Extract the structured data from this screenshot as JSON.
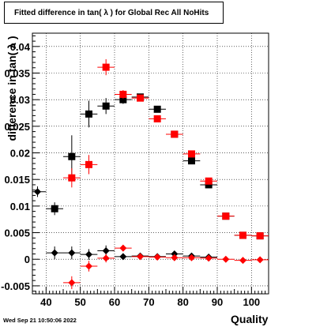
{
  "header": {
    "title": "Fitted difference in tan( λ ) for Global Rec All NoHits"
  },
  "footer": {
    "timestamp": "Wed Sep 21 10:50:06 2022"
  },
  "colors": {
    "series_black": "#000000",
    "series_red": "#ff0000",
    "grid": "#000000",
    "background": "#ffffff"
  },
  "chart_data": {
    "type": "scatter",
    "title": "Fitted difference in tan( λ ) for Global Rec All NoHits",
    "xlabel": "Quality",
    "ylabel": "difference in tan( λ )",
    "xlim": [
      36,
      105
    ],
    "ylim": [
      -0.0065,
      0.0425
    ],
    "xticks": [
      40,
      50,
      60,
      70,
      80,
      90,
      100
    ],
    "xtick_labels": [
      "40",
      "50",
      "60",
      "70",
      "80",
      "90",
      "100"
    ],
    "yticks": [
      -0.005,
      0,
      0.005,
      0.01,
      0.015,
      0.02,
      0.025,
      0.03,
      0.035,
      0.04
    ],
    "ytick_labels": [
      "-0.005",
      "0",
      "0.005",
      "0.01",
      "0.015",
      "0.02",
      "0.025",
      "0.03",
      "0.035",
      "0.04"
    ],
    "grid": true,
    "series": [
      {
        "marker": "square",
        "color": "#000000",
        "points": [
          {
            "x": 42.5,
            "y": 0.0095,
            "err": 0.0012
          },
          {
            "x": 47.5,
            "y": 0.0193,
            "err": 0.004
          },
          {
            "x": 52.5,
            "y": 0.0273,
            "err": 0.0025
          },
          {
            "x": 57.5,
            "y": 0.0288,
            "err": 0.0015
          },
          {
            "x": 62.5,
            "y": 0.03,
            "err": 0.0008
          },
          {
            "x": 67.5,
            "y": 0.0305,
            "err": 0.0006
          },
          {
            "x": 72.5,
            "y": 0.0282,
            "err": 0.0005
          },
          {
            "x": 77.5,
            "y": 0.0235,
            "err": 0.0004
          },
          {
            "x": 82.5,
            "y": 0.0185,
            "err": 0.0004
          },
          {
            "x": 87.5,
            "y": 0.014,
            "err": 0.0004
          },
          {
            "x": 92.5,
            "y": 0.0081,
            "err": 0.0004
          },
          {
            "x": 97.5,
            "y": 0.0045,
            "err": 0.0003
          },
          {
            "x": 102.5,
            "y": 0.0044,
            "err": 0.0003
          }
        ]
      },
      {
        "marker": "square",
        "color": "#ff0000",
        "points": [
          {
            "x": 47.5,
            "y": 0.0153,
            "err": 0.0018
          },
          {
            "x": 52.5,
            "y": 0.0178,
            "err": 0.0018
          },
          {
            "x": 57.5,
            "y": 0.0361,
            "err": 0.0015
          },
          {
            "x": 62.5,
            "y": 0.031,
            "err": 0.0008
          },
          {
            "x": 67.5,
            "y": 0.0303,
            "err": 0.0006
          },
          {
            "x": 72.5,
            "y": 0.0264,
            "err": 0.0005
          },
          {
            "x": 77.5,
            "y": 0.0235,
            "err": 0.0004
          },
          {
            "x": 82.5,
            "y": 0.0198,
            "err": 0.0004
          },
          {
            "x": 87.5,
            "y": 0.0147,
            "err": 0.0004
          },
          {
            "x": 92.5,
            "y": 0.0081,
            "err": 0.0004
          },
          {
            "x": 97.5,
            "y": 0.0045,
            "err": 0.0003
          },
          {
            "x": 102.5,
            "y": 0.0044,
            "err": 0.0003
          }
        ]
      },
      {
        "marker": "diamond",
        "color": "#000000",
        "points": [
          {
            "x": 37.5,
            "y": 0.0127,
            "err": 0.001
          },
          {
            "x": 42.5,
            "y": 0.0012,
            "err": 0.0012
          },
          {
            "x": 47.5,
            "y": 0.0012,
            "err": 0.0012
          },
          {
            "x": 52.5,
            "y": 0.0009,
            "err": 0.001
          },
          {
            "x": 57.5,
            "y": 0.0016,
            "err": 0.001
          },
          {
            "x": 62.5,
            "y": 0.0005,
            "err": 0.0006
          },
          {
            "x": 67.5,
            "y": 0.0006,
            "err": 0.0004
          },
          {
            "x": 72.5,
            "y": 0.0005,
            "err": 0.0003
          },
          {
            "x": 77.5,
            "y": 0.001,
            "err": 0.0003
          },
          {
            "x": 82.5,
            "y": 0.0006,
            "err": 0.0003
          },
          {
            "x": 87.5,
            "y": 0.0004,
            "err": 0.0003
          }
        ]
      },
      {
        "marker": "diamond",
        "color": "#ff0000",
        "points": [
          {
            "x": 47.5,
            "y": -0.0044,
            "err": 0.0012
          },
          {
            "x": 52.5,
            "y": -0.0013,
            "err": 0.001
          },
          {
            "x": 57.5,
            "y": 0.0002,
            "err": 0.0008
          },
          {
            "x": 62.5,
            "y": 0.0021,
            "err": 0.0006
          },
          {
            "x": 67.5,
            "y": 0.0005,
            "err": 0.0004
          },
          {
            "x": 72.5,
            "y": 0.0004,
            "err": 0.0003
          },
          {
            "x": 77.5,
            "y": 0.0003,
            "err": 0.0003
          },
          {
            "x": 82.5,
            "y": 0.0003,
            "err": 0.0003
          },
          {
            "x": 87.5,
            "y": 0.0002,
            "err": 0.0003
          },
          {
            "x": 92.5,
            "y": 0.0,
            "err": 0.0003
          },
          {
            "x": 97.5,
            "y": -0.0002,
            "err": 0.0003
          },
          {
            "x": 102.5,
            "y": -0.0001,
            "err": 0.0003
          }
        ]
      }
    ]
  }
}
